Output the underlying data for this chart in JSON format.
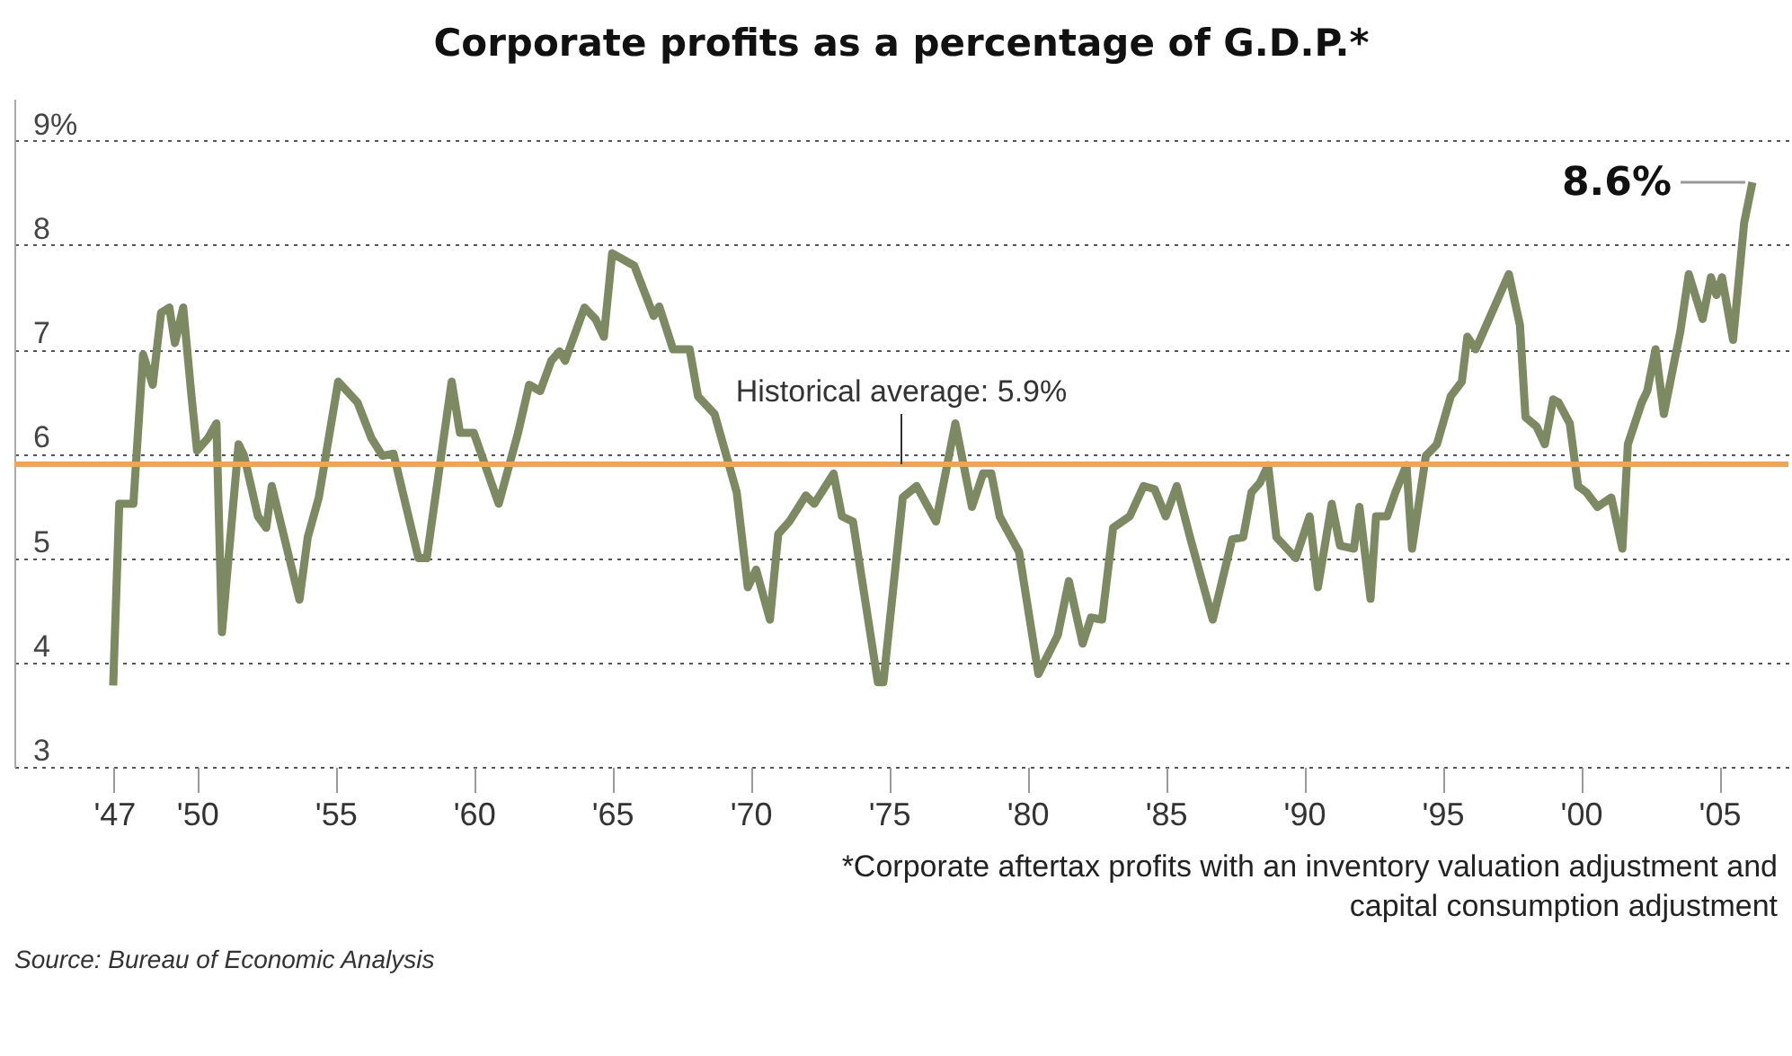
{
  "chart_data": {
    "type": "line",
    "title": "Corporate profits as a percentage of G.D.P.*",
    "x": [
      1946.97,
      1947.19,
      1947.7,
      1948.05,
      1948.4,
      1948.7,
      1949.0,
      1949.2,
      1949.5,
      1949.8,
      1950.0,
      1950.4,
      1950.7,
      1950.9,
      1951.5,
      1951.7,
      1952.2,
      1952.5,
      1952.7,
      1953.7,
      1954.0,
      1954.4,
      1955.1,
      1955.8,
      1956.3,
      1956.7,
      1957.1,
      1958.0,
      1958.3,
      1959.2,
      1959.5,
      1960.0,
      1960.9,
      1961.6,
      1962.0,
      1962.4,
      1962.8,
      1963.1,
      1963.3,
      1964.0,
      1964.4,
      1964.7,
      1965.0,
      1965.8,
      1966.5,
      1966.7,
      1967.2,
      1967.8,
      1968.1,
      1968.7,
      1969.5,
      1969.9,
      1970.2,
      1970.7,
      1971.0,
      1971.4,
      1972.0,
      1972.3,
      1973.0,
      1973.3,
      1973.7,
      1974.6,
      1974.8,
      1975.5,
      1976.0,
      1976.7,
      1977.4,
      1978.0,
      1978.4,
      1978.7,
      1979.0,
      1979.7,
      1980.4,
      1981.1,
      1981.5,
      1982.0,
      1982.3,
      1982.7,
      1983.1,
      1983.7,
      1984.2,
      1984.6,
      1985.0,
      1985.4,
      1985.9,
      1986.7,
      1987.4,
      1987.8,
      1988.1,
      1988.4,
      1988.7,
      1989.0,
      1989.7,
      1990.2,
      1990.5,
      1991.0,
      1991.3,
      1991.8,
      1992.0,
      1992.4,
      1992.6,
      1993.0,
      1993.3,
      1993.7,
      1993.9,
      1994.4,
      1994.8,
      1995.3,
      1995.7,
      1995.9,
      1996.2,
      1996.5,
      1997.4,
      1997.8,
      1998.0,
      1998.4,
      1998.7,
      1999.0,
      1999.2,
      1999.6,
      1999.9,
      2000.2,
      2000.6,
      2001.1,
      2001.5,
      2001.7,
      2002.2,
      2002.4,
      2002.7,
      2003.0,
      2003.6,
      2003.9,
      2004.4,
      2004.7,
      2004.9,
      2005.1,
      2005.5,
      2005.9,
      2006.2
    ],
    "series": [
      {
        "color": "#7d8960",
        "values": [
          3.78,
          5.52,
          5.52,
          6.95,
          6.66,
          7.35,
          7.4,
          7.06,
          7.4,
          6.55,
          6.03,
          6.15,
          6.29,
          4.29,
          6.09,
          5.98,
          5.4,
          5.29,
          5.69,
          4.6,
          5.2,
          5.58,
          6.69,
          6.49,
          6.15,
          5.98,
          6.0,
          5.0,
          5.0,
          6.69,
          6.2,
          6.2,
          5.52,
          6.2,
          6.66,
          6.6,
          6.89,
          6.98,
          6.89,
          7.4,
          7.29,
          7.12,
          7.92,
          7.8,
          7.32,
          7.41,
          7.0,
          7.0,
          6.55,
          6.38,
          5.63,
          4.72,
          4.89,
          4.41,
          5.23,
          5.35,
          5.6,
          5.52,
          5.81,
          5.4,
          5.35,
          3.81,
          3.81,
          5.58,
          5.69,
          5.35,
          6.29,
          5.49,
          5.81,
          5.81,
          5.4,
          5.06,
          3.89,
          4.26,
          4.78,
          4.18,
          4.43,
          4.41,
          5.29,
          5.4,
          5.69,
          5.66,
          5.4,
          5.69,
          5.18,
          4.41,
          5.18,
          5.2,
          5.63,
          5.72,
          5.89,
          5.2,
          5.0,
          5.4,
          4.72,
          5.52,
          5.12,
          5.09,
          5.49,
          4.61,
          5.4,
          5.4,
          5.63,
          5.89,
          5.09,
          5.98,
          6.09,
          6.55,
          6.69,
          7.12,
          7.0,
          7.18,
          7.72,
          7.23,
          6.35,
          6.26,
          6.09,
          6.52,
          6.49,
          6.29,
          5.69,
          5.63,
          5.49,
          5.58,
          5.09,
          6.09,
          6.49,
          6.6,
          7.0,
          6.38,
          7.18,
          7.72,
          7.29,
          7.69,
          7.52,
          7.69,
          7.09,
          8.21,
          8.6
        ]
      }
    ],
    "xlim": [
      1943.4,
      2007.5
    ],
    "xticks": [
      {
        "value": 1947,
        "label": "'47"
      },
      {
        "value": 1950,
        "label": "'50"
      },
      {
        "value": 1955,
        "label": "'55"
      },
      {
        "value": 1960,
        "label": "'60"
      },
      {
        "value": 1965,
        "label": "'65"
      },
      {
        "value": 1970,
        "label": "'70"
      },
      {
        "value": 1975,
        "label": "'75"
      },
      {
        "value": 1980,
        "label": "'80"
      },
      {
        "value": 1985,
        "label": "'85"
      },
      {
        "value": 1990,
        "label": "'90"
      },
      {
        "value": 1995,
        "label": "'95"
      },
      {
        "value": 2000,
        "label": "'00"
      },
      {
        "value": 2005,
        "label": "'05"
      }
    ],
    "ylim": [
      3,
      9.4
    ],
    "yticks": [
      3,
      4,
      5,
      6,
      7,
      8,
      {
        "value": 9,
        "label": "9%"
      }
    ],
    "grid": "y",
    "line_style": "solid",
    "ref_lines": [
      {
        "axis": "y",
        "value": 5.9,
        "label": "Historical average: 5.9%",
        "color": "#f0a555"
      }
    ],
    "annotations": [
      {
        "text": "8.6%",
        "x": 2006.2,
        "y": 8.6
      },
      "*Corporate aftertax profits with an inventory valuation adjustment and capital consumption adjustment",
      "Source: Bureau of Economic Analysis"
    ]
  }
}
